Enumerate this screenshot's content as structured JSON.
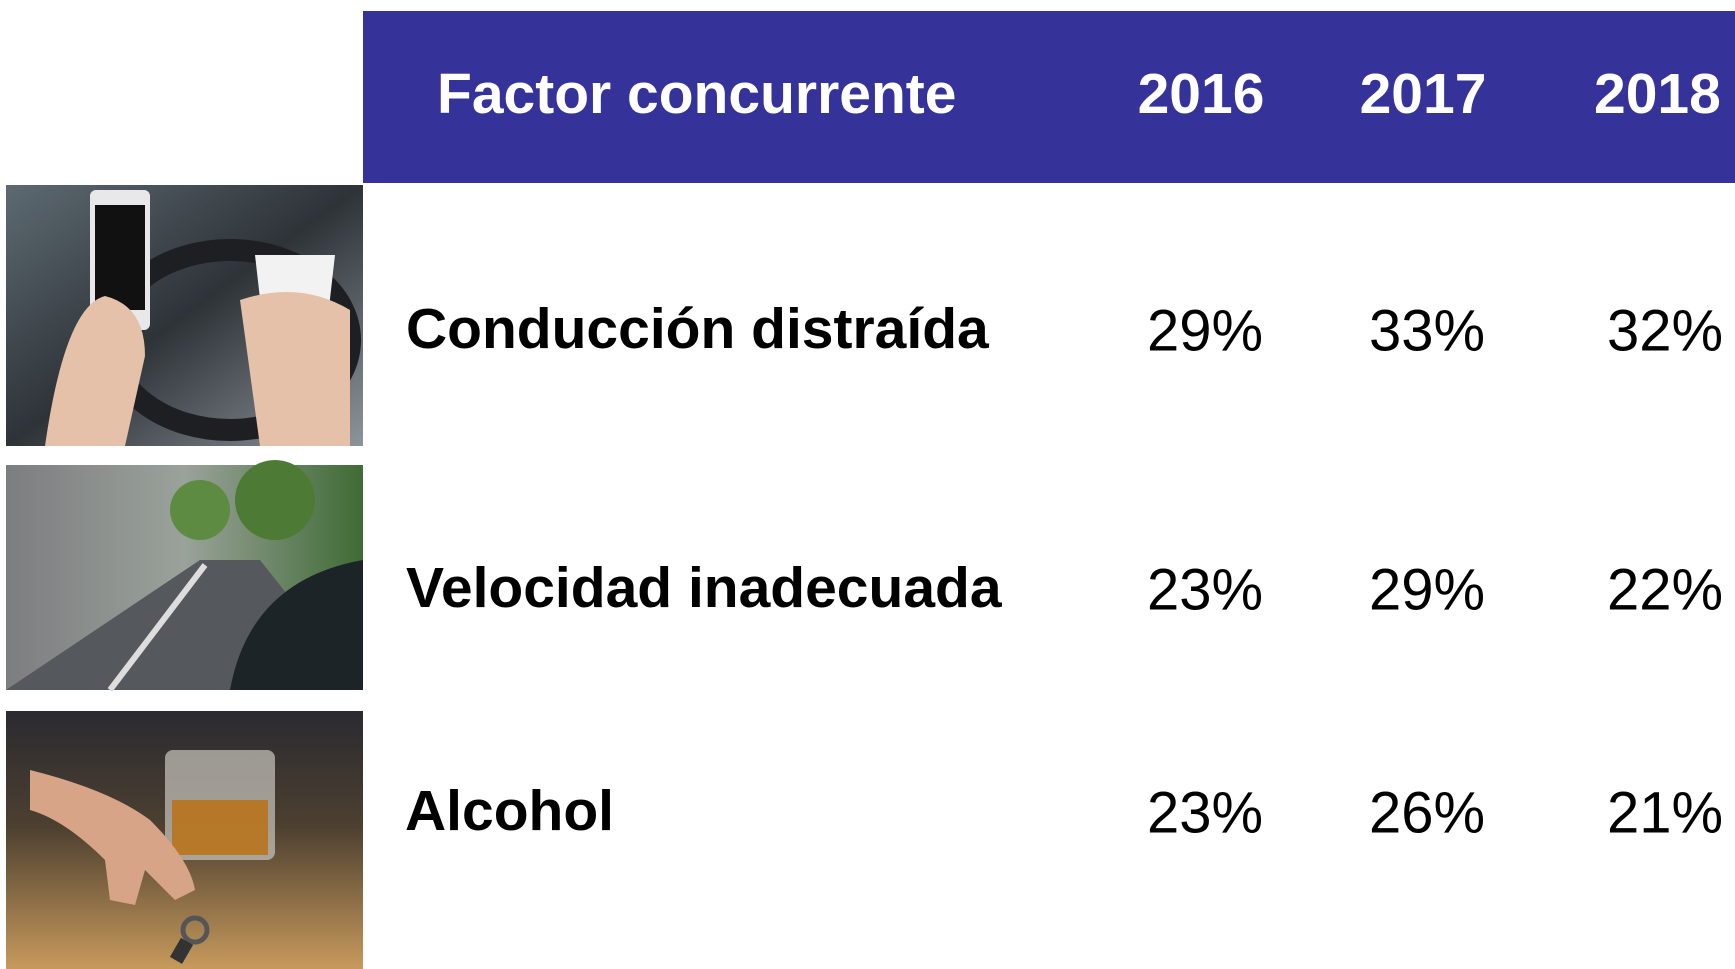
{
  "table": {
    "header": [
      "Factor concurrente",
      "2016",
      "2017",
      "2018"
    ],
    "rows": [
      [
        "Conducción distraída",
        "29%",
        "33%",
        "32%"
      ],
      [
        "Velocidad inadecuada",
        "23%",
        "29%",
        "22%"
      ],
      [
        "Alcohol",
        "23%",
        "26%",
        "21%"
      ]
    ]
  }
}
